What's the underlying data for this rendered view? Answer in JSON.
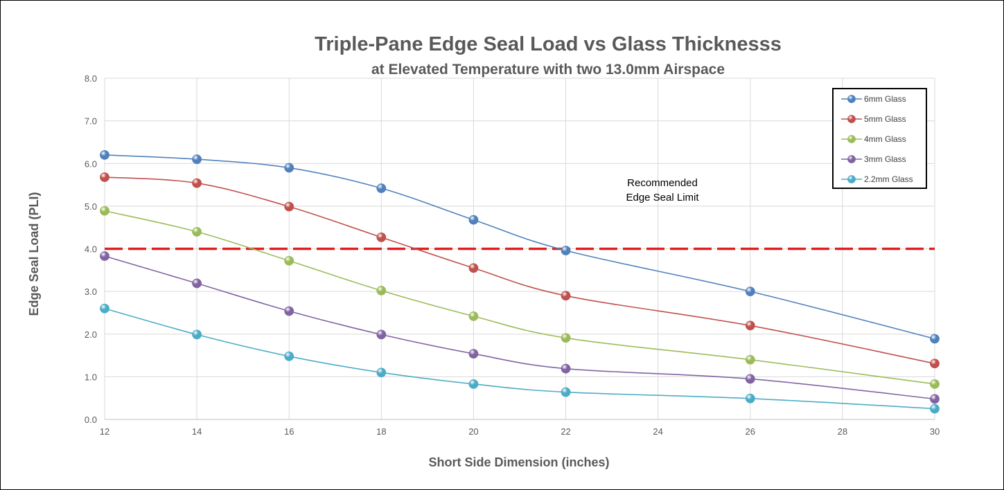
{
  "chart_data": {
    "type": "line",
    "title": "Triple-Pane Edge Seal Load vs Glass Thicknesss",
    "subtitle": "at Elevated Temperature with two 13.0mm Airspace",
    "xlabel": "Short Side Dimension (inches)",
    "ylabel": "Edge Seal Load (PLI)",
    "xlim": [
      12,
      30
    ],
    "ylim": [
      0,
      8
    ],
    "x_ticks": [
      12,
      14,
      16,
      18,
      20,
      22,
      24,
      26,
      28,
      30
    ],
    "y_ticks": [
      0,
      1,
      2,
      3,
      4,
      5,
      6,
      7,
      8
    ],
    "y_tick_labels": [
      "0.0",
      "1.0",
      "2.0",
      "3.0",
      "4.0",
      "5.0",
      "6.0",
      "7.0",
      "8.0"
    ],
    "grid": true,
    "legend_position": "top-right",
    "x": [
      12,
      14,
      16,
      18,
      20,
      22,
      26,
      30
    ],
    "series": [
      {
        "name": "6mm Glass",
        "color": "#4f81bd",
        "values": [
          6.2,
          6.1,
          5.9,
          5.42,
          4.68,
          3.96,
          3.0,
          1.89
        ]
      },
      {
        "name": "5mm Glass",
        "color": "#c0504d",
        "values": [
          5.68,
          5.54,
          4.99,
          4.27,
          3.55,
          2.9,
          2.2,
          1.31
        ]
      },
      {
        "name": "4mm Glass",
        "color": "#9bbb59",
        "values": [
          4.89,
          4.4,
          3.72,
          3.02,
          2.42,
          1.91,
          1.4,
          0.83
        ]
      },
      {
        "name": "3mm Glass",
        "color": "#8064a2",
        "values": [
          3.83,
          3.19,
          2.54,
          1.99,
          1.54,
          1.19,
          0.95,
          0.48
        ]
      },
      {
        "name": "2.2mm Glass",
        "color": "#4bacc6",
        "values": [
          2.6,
          1.99,
          1.48,
          1.1,
          0.83,
          0.64,
          0.49,
          0.25
        ]
      }
    ],
    "reference_line": {
      "value": 4.0,
      "color": "#e02020"
    },
    "annotation": {
      "line1": "Recommended",
      "line2": "Edge Seal Limit"
    }
  }
}
